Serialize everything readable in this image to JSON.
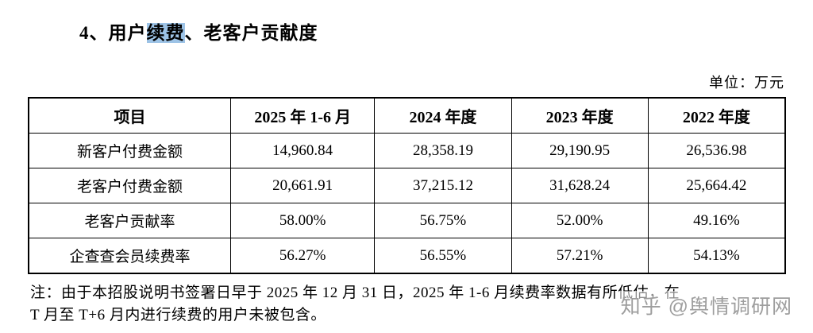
{
  "heading": {
    "prefix": "4、用户",
    "highlight": "续费",
    "suffix": "、老客户贡献度"
  },
  "unit_label": "单位：万元",
  "table": {
    "headers": [
      "项目",
      "2025 年 1-6 月",
      "2024 年度",
      "2023 年度",
      "2022 年度"
    ],
    "rows": [
      [
        "新客户付费金额",
        "14,960.84",
        "28,358.19",
        "29,190.95",
        "26,536.98"
      ],
      [
        "老客户付费金额",
        "20,661.91",
        "37,215.12",
        "31,628.24",
        "25,664.42"
      ],
      [
        "老客户贡献率",
        "58.00%",
        "56.75%",
        "52.00%",
        "49.16%"
      ],
      [
        "企查查会员续费率",
        "56.27%",
        "56.55%",
        "57.21%",
        "54.13%"
      ]
    ]
  },
  "note": {
    "line1": "注：由于本招股说明书签署日早于 2025 年 12 月 31 日，2025 年 1-6 月续费率数据有所低估，在",
    "line2": "T 月至 T+6 月内进行续费的用户未被包含。"
  },
  "watermark": "知乎 @舆情调研网",
  "colors": {
    "highlight": "#9dc3e6",
    "watermark": "#9e9e9e"
  }
}
